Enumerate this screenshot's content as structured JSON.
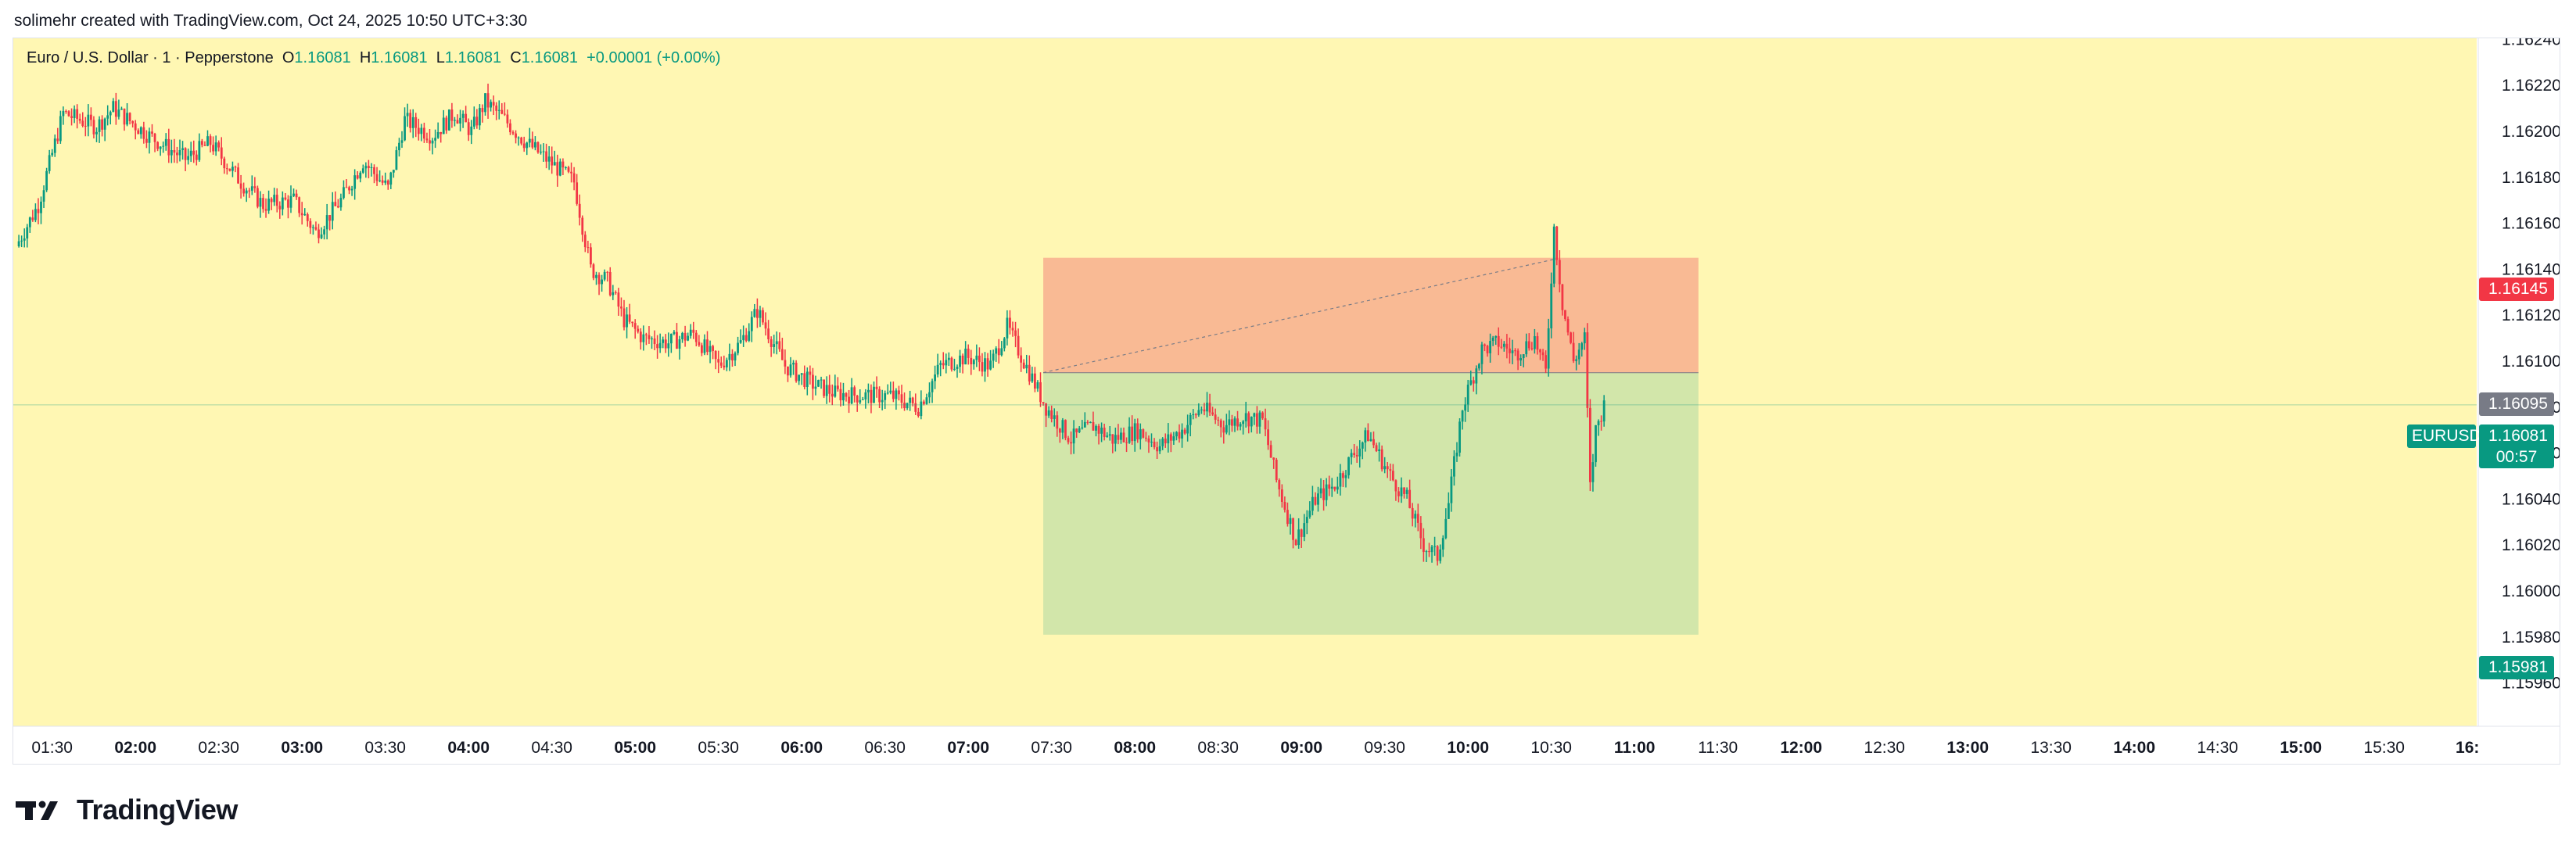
{
  "topbar": {
    "caption": "solimehr created with TradingView.com, Oct 24, 2025 10:50 UTC+3:30"
  },
  "legend": {
    "symbol": "Euro / U.S. Dollar · 1 · Pepperstone",
    "o_key": "O",
    "o_val": "1.16081",
    "h_key": "H",
    "h_val": "1.16081",
    "l_key": "L",
    "l_val": "1.16081",
    "c_key": "C",
    "c_val": "1.16081",
    "change": "+0.00001 (+0.00%)"
  },
  "brand": {
    "name": "TradingView",
    "icon": "tradingview-logo-icon"
  },
  "colors": {
    "up": "#089981",
    "down": "#f23645",
    "bg": "#fff7b3",
    "stop_zone": "#f7a68a",
    "target_zone": "#cde3a8",
    "entry_line": "#787b86"
  },
  "labels": {
    "stop_price": "1.16145",
    "entry_price": "1.16095",
    "last_symbol": "EURUSD",
    "last_price": "1.16081",
    "countdown": "00:57",
    "target_price": "1.15981"
  },
  "chart_data": {
    "type": "candlestick",
    "symbol": "EURUSD",
    "timeframe": "1",
    "y_range": [
      1.1595,
      1.1625
    ],
    "y_ticks": [
      "1.16240",
      "1.16220",
      "1.16200",
      "1.16180",
      "1.16160",
      "1.16140",
      "1.16120",
      "1.16100",
      "1.16080",
      "1.16060",
      "1.16040",
      "1.16020",
      "1.16000",
      "1.15980",
      "1.15960"
    ],
    "x_range_minutes": [
      "01:16",
      "16:05"
    ],
    "x_ticks": [
      "01:30",
      "02:00",
      "02:30",
      "03:00",
      "03:30",
      "04:00",
      "04:30",
      "05:00",
      "05:30",
      "06:00",
      "06:30",
      "07:00",
      "07:30",
      "08:00",
      "08:30",
      "09:00",
      "09:30",
      "10:00",
      "10:30",
      "11:00",
      "11:30",
      "12:00",
      "12:30",
      "13:00",
      "13:30",
      "14:00",
      "14:30",
      "15:00",
      "15:30",
      "16:"
    ],
    "price_path": [
      [
        "01:17",
        1.1615
      ],
      [
        "01:25",
        1.16168
      ],
      [
        "01:34",
        1.16208
      ],
      [
        "01:46",
        1.16202
      ],
      [
        "01:52",
        1.1621
      ],
      [
        "02:05",
        1.16198
      ],
      [
        "02:18",
        1.16188
      ],
      [
        "02:27",
        1.16195
      ],
      [
        "02:38",
        1.16178
      ],
      [
        "02:46",
        1.16168
      ],
      [
        "02:57",
        1.1617
      ],
      [
        "03:05",
        1.16156
      ],
      [
        "03:14",
        1.1617
      ],
      [
        "03:22",
        1.16187
      ],
      [
        "03:31",
        1.16175
      ],
      [
        "03:37",
        1.16205
      ],
      [
        "03:47",
        1.16198
      ],
      [
        "03:55",
        1.16208
      ],
      [
        "04:01",
        1.162
      ],
      [
        "04:06",
        1.16213
      ],
      [
        "04:13",
        1.16205
      ],
      [
        "04:20",
        1.16196
      ],
      [
        "04:31",
        1.16185
      ],
      [
        "04:38",
        1.16178
      ],
      [
        "04:44",
        1.1614
      ],
      [
        "04:50",
        1.16135
      ],
      [
        "04:56",
        1.16118
      ],
      [
        "05:03",
        1.1611
      ],
      [
        "05:12",
        1.16108
      ],
      [
        "05:21",
        1.16112
      ],
      [
        "05:30",
        1.16098
      ],
      [
        "05:38",
        1.16108
      ],
      [
        "05:44",
        1.16122
      ],
      [
        "05:54",
        1.16098
      ],
      [
        "06:04",
        1.1609
      ],
      [
        "06:12",
        1.16086
      ],
      [
        "06:22",
        1.16085
      ],
      [
        "06:32",
        1.16085
      ],
      [
        "06:42",
        1.1608
      ],
      [
        "06:50",
        1.16098
      ],
      [
        "06:59",
        1.16102
      ],
      [
        "07:08",
        1.16098
      ],
      [
        "07:14",
        1.16115
      ],
      [
        "07:20",
        1.161
      ],
      [
        "07:28",
        1.1608
      ],
      [
        "07:37",
        1.16066
      ],
      [
        "07:45",
        1.16072
      ],
      [
        "07:52",
        1.16066
      ],
      [
        "08:01",
        1.1607
      ],
      [
        "08:09",
        1.16063
      ],
      [
        "08:17",
        1.1607
      ],
      [
        "08:24",
        1.1608
      ],
      [
        "08:32",
        1.16072
      ],
      [
        "08:39",
        1.16076
      ],
      [
        "08:46",
        1.16074
      ],
      [
        "08:51",
        1.16048
      ],
      [
        "08:58",
        1.16022
      ],
      [
        "09:05",
        1.1604
      ],
      [
        "09:12",
        1.16046
      ],
      [
        "09:19",
        1.1606
      ],
      [
        "09:24",
        1.16068
      ],
      [
        "09:32",
        1.1605
      ],
      [
        "09:38",
        1.1604
      ],
      [
        "09:44",
        1.1602
      ],
      [
        "09:49",
        1.16015
      ],
      [
        "09:53",
        1.16038
      ],
      [
        "09:58",
        1.1608
      ],
      [
        "10:05",
        1.16105
      ],
      [
        "10:11",
        1.16108
      ],
      [
        "10:17",
        1.16103
      ],
      [
        "10:24",
        1.1611
      ],
      [
        "10:28",
        1.16095
      ],
      [
        "10:31",
        1.16158
      ],
      [
        "10:34",
        1.16125
      ],
      [
        "10:38",
        1.161
      ],
      [
        "10:42",
        1.1611
      ],
      [
        "10:44",
        1.16045
      ],
      [
        "10:46",
        1.1607
      ],
      [
        "10:49",
        1.16081
      ]
    ],
    "position_tool": {
      "type": "short",
      "entry": 1.16095,
      "stop": 1.16145,
      "target": 1.15981,
      "start_time": "07:27",
      "end_time": "11:23"
    },
    "current_price": 1.16081
  }
}
